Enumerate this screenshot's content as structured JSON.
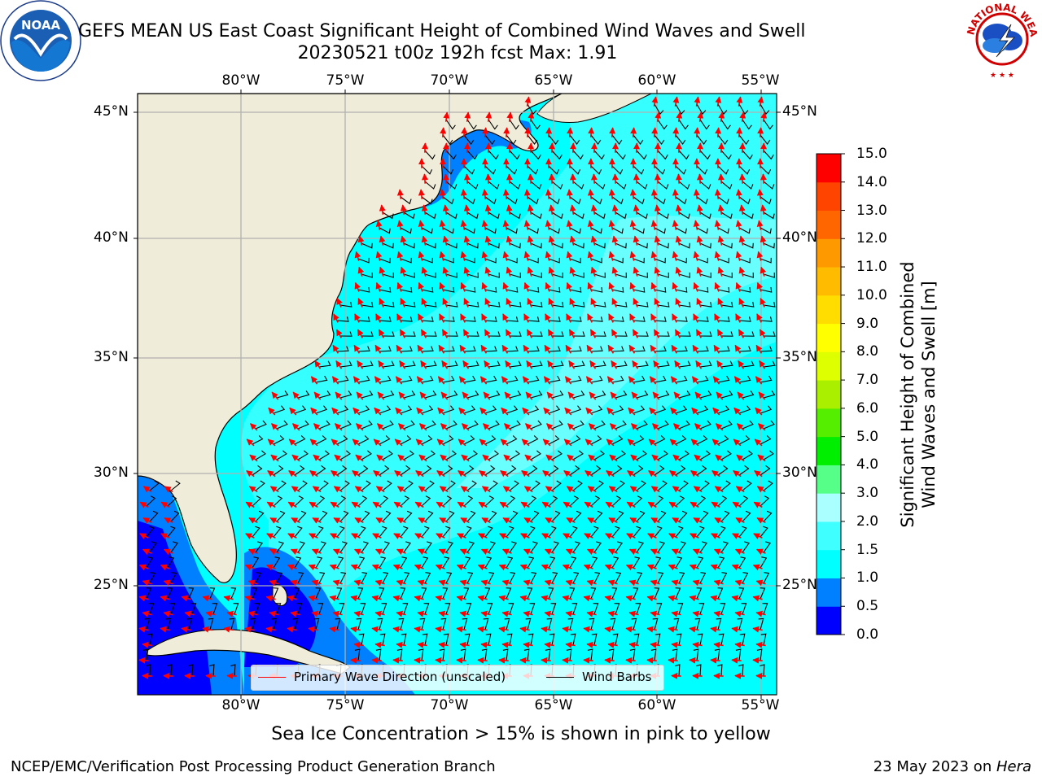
{
  "header": {
    "title": "GEFS MEAN US East Coast Significant Height of Combined Wind Waves and Swell",
    "subtitle": "20230521 t00z 192h fcst   Max: 1.91"
  },
  "logos": {
    "left": {
      "name": "NOAA",
      "text": "NOAA",
      "ring_text": "NATIONAL OCEANIC AND ATMOSPHERIC ADMINISTRATION · U.S. DEPARTMENT OF COMMERCE"
    },
    "right": {
      "name": "National Weather Service",
      "ring_text": "NATIONAL WEATHER SERVICE"
    }
  },
  "map": {
    "lon_labels": [
      "80°W",
      "75°W",
      "70°W",
      "65°W",
      "60°W",
      "55°W"
    ],
    "lat_labels": [
      "45°N",
      "40°N",
      "35°N",
      "30°N",
      "25°N"
    ],
    "colors": {
      "land": "#efedd9",
      "ocean": "#00ffff",
      "grid": "#b0b0b0",
      "wave_arrow": "#ff0000",
      "wind_barb": "#000000"
    },
    "legend": {
      "primary_wave": "Primary Wave Direction (unscaled)",
      "wind_barbs": "Wind Barbs"
    }
  },
  "colorbar": {
    "label": "Significant Height of Combined Wind Waves and Swell [m]",
    "label_line1": "Significant Height of Combined",
    "label_line2": "Wind Waves and Swell [m]",
    "ticks": [
      "15.0",
      "14.0",
      "13.0",
      "12.0",
      "11.0",
      "10.0",
      "9.0",
      "8.0",
      "7.0",
      "6.0",
      "5.0",
      "4.0",
      "3.0",
      "2.0",
      "1.5",
      "1.0",
      "0.5",
      "0.0"
    ],
    "bands": [
      "#0000ff",
      "#0080ff",
      "#00ffff",
      "#40ffff",
      "#7fffff",
      "#aaffff",
      "#55ff88",
      "#00ff00",
      "#00dd00",
      "#55ee00",
      "#aaee00",
      "#ddff00",
      "#ffff00",
      "#ffee00",
      "#ffcc00",
      "#ffaa00",
      "#ff8800",
      "#ff6600",
      "#ff4400",
      "#ff2200",
      "#ff0000"
    ]
  },
  "notes": {
    "ice": "Sea Ice Concentration > 15% is shown in pink to yellow"
  },
  "footer": {
    "left": "NCEP/EMC/Verification Post Processing Product Generation Branch",
    "date": "23 May 2023 on ",
    "machine": "Hera"
  }
}
